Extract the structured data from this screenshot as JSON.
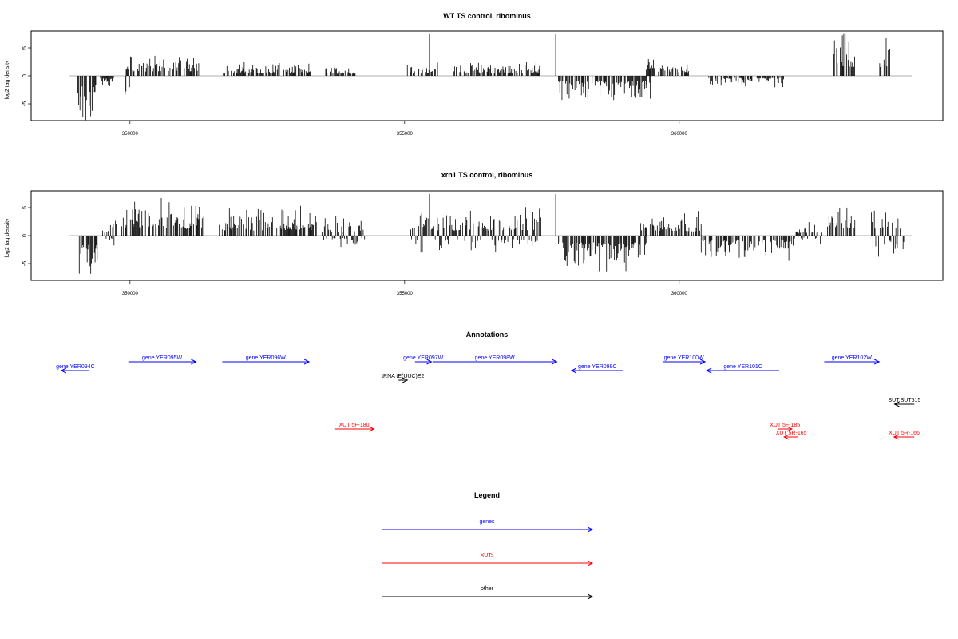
{
  "chart_data": [
    {
      "type": "bar",
      "title": "WT TS control, ribominus",
      "ylabel": "log2 tag density",
      "xlim": [
        348200,
        364800
      ],
      "ylim": [
        -8,
        8
      ],
      "xticks": [
        350000,
        355000,
        360000
      ],
      "yticks": [
        -5,
        0,
        5
      ],
      "markers": [
        355450,
        357750
      ],
      "regions": [
        {
          "from": 349050,
          "to": 349400,
          "mode": "neg",
          "amp": 5
        },
        {
          "from": 349450,
          "to": 349700,
          "mode": "neg",
          "amp": 1.5
        },
        {
          "from": 349900,
          "to": 350000,
          "mode": "neg",
          "amp": 2.5
        },
        {
          "from": 349930,
          "to": 351350,
          "mode": "pos",
          "amp": 2.5
        },
        {
          "from": 351700,
          "to": 353300,
          "mode": "pos",
          "amp": 1.5
        },
        {
          "from": 353550,
          "to": 354100,
          "mode": "pos",
          "amp": 1.2
        },
        {
          "from": 355050,
          "to": 355600,
          "mode": "pos",
          "amp": 1.5
        },
        {
          "from": 355900,
          "to": 357500,
          "mode": "pos",
          "amp": 1.5
        },
        {
          "from": 357800,
          "to": 359500,
          "mode": "neg",
          "amp": 3
        },
        {
          "from": 359400,
          "to": 360200,
          "mode": "pos",
          "amp": 2
        },
        {
          "from": 360500,
          "to": 361900,
          "mode": "neg",
          "amp": 1.2
        },
        {
          "from": 362800,
          "to": 363200,
          "mode": "pos",
          "amp": 5
        },
        {
          "from": 363650,
          "to": 363850,
          "mode": "pos",
          "amp": 4
        }
      ]
    },
    {
      "type": "bar",
      "title": "xrn1 TS control, ribominus",
      "ylabel": "log2 tag density",
      "xlim": [
        348200,
        364800
      ],
      "ylim": [
        -8,
        8
      ],
      "xticks": [
        350000,
        355000,
        360000
      ],
      "yticks": [
        -5,
        0,
        5
      ],
      "markers": [
        355450,
        357750
      ],
      "regions": [
        {
          "from": 349050,
          "to": 349450,
          "mode": "neg",
          "amp": 5.5
        },
        {
          "from": 349500,
          "to": 349750,
          "mode": "mix",
          "amp": 2
        },
        {
          "from": 349850,
          "to": 351350,
          "mode": "pos",
          "amp": 4
        },
        {
          "from": 351600,
          "to": 353400,
          "mode": "pos",
          "amp": 3
        },
        {
          "from": 353500,
          "to": 354300,
          "mode": "mix",
          "amp": 2
        },
        {
          "from": 355100,
          "to": 357500,
          "mode": "mix",
          "amp": 3
        },
        {
          "from": 357800,
          "to": 359400,
          "mode": "neg",
          "amp": 4
        },
        {
          "from": 359300,
          "to": 360400,
          "mode": "pos",
          "amp": 2.5
        },
        {
          "from": 360400,
          "to": 362100,
          "mode": "neg",
          "amp": 2.5
        },
        {
          "from": 362100,
          "to": 362600,
          "mode": "mix",
          "amp": 1.5
        },
        {
          "from": 362700,
          "to": 363200,
          "mode": "pos",
          "amp": 4
        },
        {
          "from": 363500,
          "to": 364100,
          "mode": "mix",
          "amp": 4
        }
      ]
    }
  ],
  "annotations": {
    "title": "Annotations",
    "items": [
      {
        "label": "gene YER094C",
        "dir": "left",
        "color": "#0000ff",
        "row": 1,
        "x1": 349260,
        "x2": 348750
      },
      {
        "label": "gene YER095W",
        "dir": "right",
        "color": "#0000ff",
        "row": 0,
        "x1": 349970,
        "x2": 351200
      },
      {
        "label": "gene YER096W",
        "dir": "right",
        "color": "#0000ff",
        "row": 0,
        "x1": 351680,
        "x2": 353260
      },
      {
        "label": "gene YER097W",
        "dir": "right",
        "color": "#0000ff",
        "row": 0,
        "x1": 355190,
        "x2": 355490
      },
      {
        "label": "gene YER098W",
        "dir": "right",
        "color": "#0000ff",
        "row": 0,
        "x1": 355510,
        "x2": 357770
      },
      {
        "label": "gene YER099C",
        "dir": "left",
        "color": "#0000ff",
        "row": 1,
        "x1": 358980,
        "x2": 358040
      },
      {
        "label": "gene YER100W",
        "dir": "right",
        "color": "#0000ff",
        "row": 0,
        "x1": 359700,
        "x2": 360470
      },
      {
        "label": "gene YER101C",
        "dir": "left",
        "color": "#0000ff",
        "row": 1,
        "x1": 361820,
        "x2": 360500
      },
      {
        "label": "gene YER102W",
        "dir": "right",
        "color": "#0000ff",
        "row": 0,
        "x1": 362640,
        "x2": 363640
      },
      {
        "label": "tRNA tE(UUC)E2",
        "dir": "right",
        "color": "#000000",
        "row": 2,
        "x1": 354890,
        "x2": 355050
      },
      {
        "label": "SUT.SUT515",
        "dir": "left",
        "color": "#000000",
        "row": 3,
        "x1": 364280,
        "x2": 363920
      },
      {
        "label": "XUT 5F-180",
        "dir": "right",
        "color": "#ff0000",
        "row": 4,
        "x1": 353720,
        "x2": 354440
      },
      {
        "label": "XUT 5F-185",
        "dir": "right",
        "color": "#ff0000",
        "row": 4,
        "x1": 361800,
        "x2": 362050
      },
      {
        "label": "XUT 5R-165",
        "dir": "left",
        "color": "#ff0000",
        "row": 5,
        "x1": 362170,
        "x2": 361910
      },
      {
        "label": "XUT 5R-166",
        "dir": "left",
        "color": "#ff0000",
        "row": 5,
        "x1": 364280,
        "x2": 363910
      }
    ]
  },
  "legend": {
    "title": "Legend",
    "items": [
      {
        "label": "genes",
        "color": "#0000ff"
      },
      {
        "label": "XUTs",
        "color": "#ff0000"
      },
      {
        "label": "other",
        "color": "#000000"
      }
    ]
  }
}
